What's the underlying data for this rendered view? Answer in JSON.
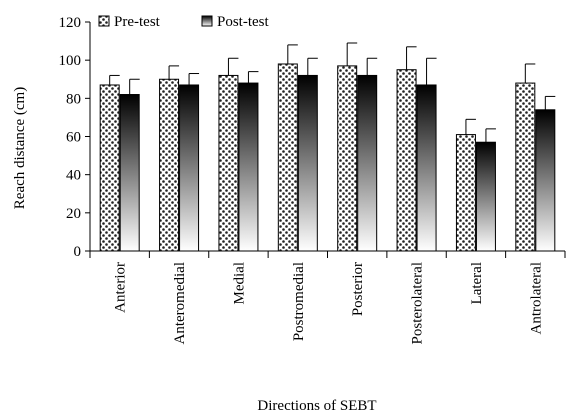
{
  "chart_data": {
    "type": "bar",
    "title": "",
    "xlabel": "Directions of SEBT",
    "ylabel": "Reach distance (cm)",
    "ylim": [
      0,
      120
    ],
    "yticks": [
      0,
      20,
      40,
      60,
      80,
      100,
      120
    ],
    "grid": false,
    "legend_position": "top-left",
    "categories": [
      "Anterior",
      "Anteromedial",
      "Medial",
      "Postromedial",
      "Posterior",
      "Posterolateral",
      "Lateral",
      "Antrolateral"
    ],
    "series": [
      {
        "name": "Pre-test",
        "values": [
          87,
          90,
          92,
          98,
          97,
          95,
          61,
          88
        ],
        "errors": [
          5,
          7,
          9,
          10,
          12,
          12,
          8,
          10
        ]
      },
      {
        "name": "Post-test",
        "values": [
          82,
          87,
          88,
          92,
          92,
          87,
          57,
          74
        ],
        "errors": [
          8,
          6,
          6,
          9,
          9,
          14,
          7,
          7
        ]
      }
    ]
  }
}
